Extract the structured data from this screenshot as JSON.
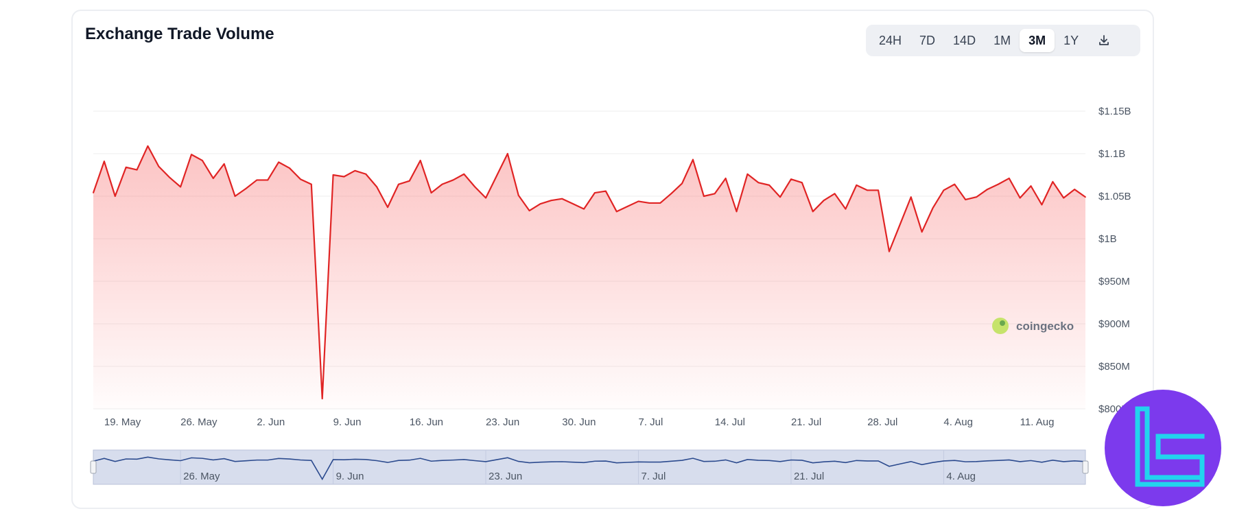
{
  "chart_title": "Exchange Trade Volume",
  "range_buttons": [
    {
      "label": "24H",
      "active": false
    },
    {
      "label": "7D",
      "active": false
    },
    {
      "label": "14D",
      "active": false
    },
    {
      "label": "1M",
      "active": false
    },
    {
      "label": "3M",
      "active": true
    },
    {
      "label": "1Y",
      "active": false
    }
  ],
  "download_icon": "download-icon",
  "watermark": "coingecko",
  "colors": {
    "line": "#e02424",
    "fill_top": "#f87171",
    "navigator_line": "#2b4a8e",
    "navigator_bg": "#d7dded",
    "grid": "#eeeeee",
    "logo_bg": "#7c3aed",
    "logo_mark": "#22d3ee"
  },
  "chart_data": {
    "type": "area",
    "title": "Exchange Trade Volume",
    "x_start": "2024-05-18",
    "x_interval_days": 1,
    "xticks": [
      "19. May",
      "26. May",
      "2. Jun",
      "9. Jun",
      "16. Jun",
      "23. Jun",
      "30. Jun",
      "7. Jul",
      "14. Jul",
      "21. Jul",
      "28. Jul",
      "4. Aug",
      "11. Aug"
    ],
    "yticks": [
      "$800M",
      "$850M",
      "$900M",
      "$950M",
      "$1B",
      "$1.05B",
      "$1.1B",
      "$1.15B"
    ],
    "ylim": [
      800,
      1150
    ],
    "y_unit": "M USD",
    "grid": true,
    "series": [
      {
        "values": [
          1054,
          1091,
          1050,
          1084,
          1081,
          1109,
          1085,
          1072,
          1061,
          1099,
          1092,
          1071,
          1088,
          1050,
          1059,
          1069,
          1069,
          1090,
          1083,
          1070,
          1064,
          812,
          1075,
          1073,
          1080,
          1076,
          1061,
          1037,
          1064,
          1068,
          1092,
          1054,
          1064,
          1069,
          1076,
          1061,
          1048,
          1074,
          1100,
          1051,
          1033,
          1041,
          1045,
          1047,
          1041,
          1035,
          1054,
          1056,
          1032,
          1038,
          1044,
          1042,
          1042,
          1053,
          1065,
          1093,
          1050,
          1053,
          1071,
          1032,
          1076,
          1066,
          1063,
          1049,
          1070,
          1066,
          1032,
          1045,
          1053,
          1035,
          1063,
          1057,
          1057,
          985,
          1017,
          1049,
          1008,
          1036,
          1057,
          1064,
          1046,
          1049,
          1058,
          1064,
          1071,
          1048,
          1062,
          1040,
          1067,
          1048,
          1058,
          1049
        ]
      }
    ],
    "navigator": {
      "labels": [
        "26. May",
        "9. Jun",
        "23. Jun",
        "7. Jul",
        "21. Jul",
        "4. Aug"
      ]
    }
  }
}
